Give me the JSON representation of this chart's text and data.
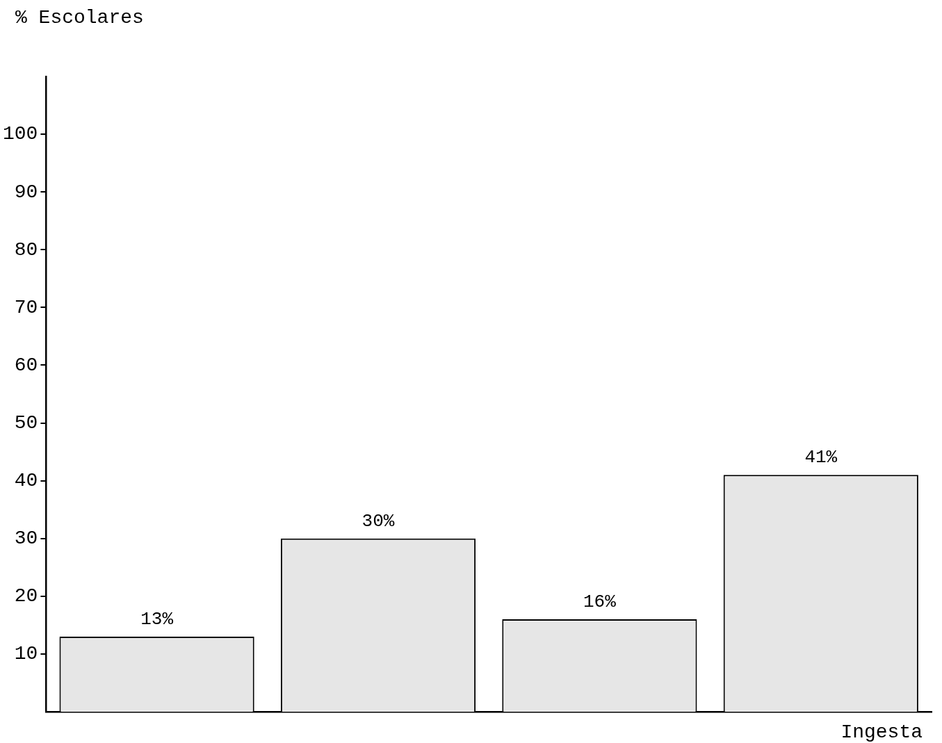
{
  "chart_data": {
    "type": "bar",
    "ylabel": "% Escolares",
    "xlabel": "Ingesta",
    "categories": [
      null,
      null,
      null,
      null
    ],
    "values": [
      13,
      30,
      16,
      41
    ],
    "value_labels": [
      "13%",
      "30%",
      "16%",
      "41%"
    ],
    "color": "#e6e6e6",
    "ylim": [
      0,
      110
    ],
    "yticks": [
      10,
      20,
      30,
      40,
      50,
      60,
      70,
      80,
      90,
      100
    ],
    "grid": false,
    "legend": false,
    "tick_labels": "y"
  }
}
